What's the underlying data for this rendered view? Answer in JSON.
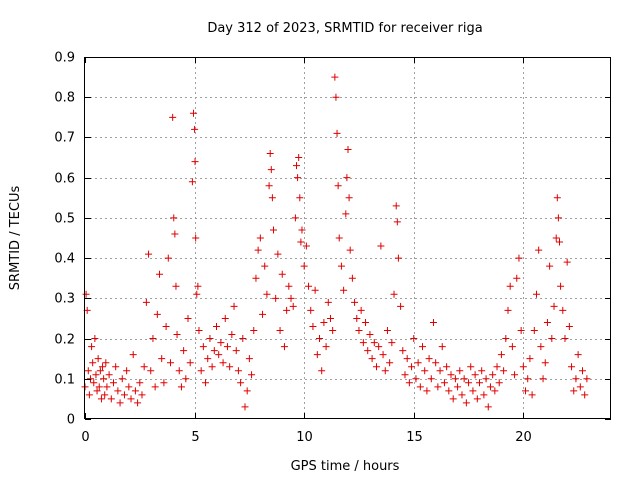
{
  "chart_data": {
    "type": "scatter",
    "title": "Day 312 of 2023, SRMTID for receiver riga",
    "xlabel": "GPS time / hours",
    "ylabel": "SRMTID / TECUs",
    "xlim": [
      0,
      24
    ],
    "ylim": [
      0,
      0.9
    ],
    "xticks": [
      0,
      5,
      10,
      15,
      20
    ],
    "xtick_labels": [
      "0",
      "5",
      "10",
      "15",
      "20"
    ],
    "yticks": [
      0,
      0.1,
      0.2,
      0.3,
      0.4,
      0.5,
      0.6,
      0.7,
      0.8,
      0.9
    ],
    "ytick_labels": [
      "0",
      "0.1",
      "0.2",
      "0.3",
      "0.4",
      "0.5",
      "0.6",
      "0.7",
      "0.8",
      "0.9"
    ],
    "grid": true,
    "marker": "+",
    "color": "#e00000",
    "series": [
      {
        "name": "SRMTID",
        "points": [
          [
            0.0,
            0.08
          ],
          [
            0.05,
            0.31
          ],
          [
            0.1,
            0.27
          ],
          [
            0.15,
            0.12
          ],
          [
            0.2,
            0.06
          ],
          [
            0.25,
            0.1
          ],
          [
            0.3,
            0.18
          ],
          [
            0.35,
            0.14
          ],
          [
            0.4,
            0.09
          ],
          [
            0.45,
            0.2
          ],
          [
            0.5,
            0.11
          ],
          [
            0.55,
            0.07
          ],
          [
            0.6,
            0.15
          ],
          [
            0.65,
            0.08
          ],
          [
            0.7,
            0.12
          ],
          [
            0.75,
            0.05
          ],
          [
            0.8,
            0.13
          ],
          [
            0.85,
            0.1
          ],
          [
            0.9,
            0.06
          ],
          [
            0.95,
            0.14
          ],
          [
            1.0,
            0.08
          ],
          [
            1.1,
            0.11
          ],
          [
            1.2,
            0.05
          ],
          [
            1.3,
            0.09
          ],
          [
            1.4,
            0.13
          ],
          [
            1.5,
            0.07
          ],
          [
            1.6,
            0.04
          ],
          [
            1.7,
            0.1
          ],
          [
            1.8,
            0.06
          ],
          [
            1.9,
            0.12
          ],
          [
            2.0,
            0.08
          ],
          [
            2.1,
            0.05
          ],
          [
            2.2,
            0.16
          ],
          [
            2.3,
            0.07
          ],
          [
            2.4,
            0.04
          ],
          [
            2.5,
            0.09
          ],
          [
            2.6,
            0.06
          ],
          [
            2.7,
            0.13
          ],
          [
            2.8,
            0.29
          ],
          [
            2.9,
            0.41
          ],
          [
            3.0,
            0.12
          ],
          [
            3.1,
            0.2
          ],
          [
            3.2,
            0.08
          ],
          [
            3.3,
            0.26
          ],
          [
            3.4,
            0.36
          ],
          [
            3.5,
            0.15
          ],
          [
            3.6,
            0.09
          ],
          [
            3.7,
            0.23
          ],
          [
            3.8,
            0.4
          ],
          [
            3.9,
            0.14
          ],
          [
            4.0,
            0.75
          ],
          [
            4.05,
            0.5
          ],
          [
            4.1,
            0.46
          ],
          [
            4.15,
            0.33
          ],
          [
            4.2,
            0.21
          ],
          [
            4.3,
            0.12
          ],
          [
            4.4,
            0.08
          ],
          [
            4.5,
            0.17
          ],
          [
            4.6,
            0.1
          ],
          [
            4.7,
            0.25
          ],
          [
            4.8,
            0.14
          ],
          [
            4.9,
            0.59
          ],
          [
            4.95,
            0.76
          ],
          [
            5.0,
            0.72
          ],
          [
            5.02,
            0.64
          ],
          [
            5.05,
            0.45
          ],
          [
            5.1,
            0.31
          ],
          [
            5.15,
            0.33
          ],
          [
            5.2,
            0.22
          ],
          [
            5.3,
            0.12
          ],
          [
            5.4,
            0.18
          ],
          [
            5.5,
            0.09
          ],
          [
            5.6,
            0.15
          ],
          [
            5.7,
            0.2
          ],
          [
            5.8,
            0.13
          ],
          [
            5.9,
            0.17
          ],
          [
            6.0,
            0.23
          ],
          [
            6.1,
            0.16
          ],
          [
            6.2,
            0.19
          ],
          [
            6.3,
            0.14
          ],
          [
            6.4,
            0.25
          ],
          [
            6.5,
            0.18
          ],
          [
            6.6,
            0.13
          ],
          [
            6.7,
            0.21
          ],
          [
            6.8,
            0.28
          ],
          [
            6.9,
            0.17
          ],
          [
            7.0,
            0.12
          ],
          [
            7.1,
            0.09
          ],
          [
            7.2,
            0.2
          ],
          [
            7.3,
            0.03
          ],
          [
            7.4,
            0.07
          ],
          [
            7.5,
            0.15
          ],
          [
            7.6,
            0.11
          ],
          [
            7.7,
            0.22
          ],
          [
            7.8,
            0.35
          ],
          [
            7.9,
            0.42
          ],
          [
            8.0,
            0.45
          ],
          [
            8.1,
            0.26
          ],
          [
            8.2,
            0.38
          ],
          [
            8.3,
            0.31
          ],
          [
            8.4,
            0.58
          ],
          [
            8.45,
            0.66
          ],
          [
            8.5,
            0.62
          ],
          [
            8.55,
            0.55
          ],
          [
            8.6,
            0.47
          ],
          [
            8.7,
            0.3
          ],
          [
            8.8,
            0.41
          ],
          [
            8.9,
            0.22
          ],
          [
            9.0,
            0.36
          ],
          [
            9.1,
            0.18
          ],
          [
            9.2,
            0.27
          ],
          [
            9.3,
            0.33
          ],
          [
            9.4,
            0.3
          ],
          [
            9.5,
            0.28
          ],
          [
            9.6,
            0.5
          ],
          [
            9.65,
            0.63
          ],
          [
            9.7,
            0.6
          ],
          [
            9.75,
            0.65
          ],
          [
            9.8,
            0.55
          ],
          [
            9.85,
            0.44
          ],
          [
            9.9,
            0.47
          ],
          [
            10.0,
            0.38
          ],
          [
            10.1,
            0.43
          ],
          [
            10.2,
            0.33
          ],
          [
            10.3,
            0.27
          ],
          [
            10.4,
            0.23
          ],
          [
            10.5,
            0.32
          ],
          [
            10.6,
            0.16
          ],
          [
            10.7,
            0.2
          ],
          [
            10.8,
            0.12
          ],
          [
            10.9,
            0.24
          ],
          [
            11.0,
            0.18
          ],
          [
            11.1,
            0.29
          ],
          [
            11.2,
            0.25
          ],
          [
            11.3,
            0.22
          ],
          [
            11.4,
            0.85
          ],
          [
            11.45,
            0.8
          ],
          [
            11.5,
            0.71
          ],
          [
            11.55,
            0.58
          ],
          [
            11.6,
            0.45
          ],
          [
            11.7,
            0.38
          ],
          [
            11.8,
            0.32
          ],
          [
            11.9,
            0.51
          ],
          [
            11.95,
            0.6
          ],
          [
            12.0,
            0.67
          ],
          [
            12.05,
            0.55
          ],
          [
            12.1,
            0.42
          ],
          [
            12.2,
            0.35
          ],
          [
            12.3,
            0.29
          ],
          [
            12.4,
            0.25
          ],
          [
            12.5,
            0.22
          ],
          [
            12.6,
            0.27
          ],
          [
            12.7,
            0.19
          ],
          [
            12.8,
            0.24
          ],
          [
            12.9,
            0.17
          ],
          [
            13.0,
            0.21
          ],
          [
            13.1,
            0.15
          ],
          [
            13.2,
            0.19
          ],
          [
            13.3,
            0.13
          ],
          [
            13.4,
            0.18
          ],
          [
            13.5,
            0.43
          ],
          [
            13.6,
            0.16
          ],
          [
            13.7,
            0.12
          ],
          [
            13.8,
            0.22
          ],
          [
            13.9,
            0.14
          ],
          [
            14.0,
            0.19
          ],
          [
            14.1,
            0.31
          ],
          [
            14.2,
            0.53
          ],
          [
            14.25,
            0.49
          ],
          [
            14.3,
            0.4
          ],
          [
            14.4,
            0.28
          ],
          [
            14.5,
            0.17
          ],
          [
            14.6,
            0.11
          ],
          [
            14.7,
            0.15
          ],
          [
            14.8,
            0.09
          ],
          [
            14.9,
            0.13
          ],
          [
            15.0,
            0.2
          ],
          [
            15.1,
            0.1
          ],
          [
            15.2,
            0.14
          ],
          [
            15.3,
            0.08
          ],
          [
            15.4,
            0.18
          ],
          [
            15.5,
            0.12
          ],
          [
            15.6,
            0.07
          ],
          [
            15.7,
            0.15
          ],
          [
            15.8,
            0.1
          ],
          [
            15.9,
            0.24
          ],
          [
            16.0,
            0.14
          ],
          [
            16.1,
            0.08
          ],
          [
            16.2,
            0.12
          ],
          [
            16.3,
            0.18
          ],
          [
            16.4,
            0.09
          ],
          [
            16.5,
            0.13
          ],
          [
            16.6,
            0.07
          ],
          [
            16.7,
            0.11
          ],
          [
            16.8,
            0.05
          ],
          [
            16.9,
            0.1
          ],
          [
            17.0,
            0.08
          ],
          [
            17.1,
            0.12
          ],
          [
            17.2,
            0.06
          ],
          [
            17.3,
            0.1
          ],
          [
            17.4,
            0.04
          ],
          [
            17.5,
            0.09
          ],
          [
            17.6,
            0.13
          ],
          [
            17.7,
            0.07
          ],
          [
            17.8,
            0.11
          ],
          [
            17.9,
            0.05
          ],
          [
            18.0,
            0.09
          ],
          [
            18.1,
            0.12
          ],
          [
            18.2,
            0.06
          ],
          [
            18.3,
            0.1
          ],
          [
            18.4,
            0.03
          ],
          [
            18.5,
            0.08
          ],
          [
            18.6,
            0.11
          ],
          [
            18.7,
            0.07
          ],
          [
            18.8,
            0.13
          ],
          [
            18.9,
            0.09
          ],
          [
            19.0,
            0.16
          ],
          [
            19.1,
            0.12
          ],
          [
            19.2,
            0.2
          ],
          [
            19.3,
            0.27
          ],
          [
            19.4,
            0.33
          ],
          [
            19.5,
            0.18
          ],
          [
            19.6,
            0.11
          ],
          [
            19.7,
            0.35
          ],
          [
            19.8,
            0.4
          ],
          [
            19.9,
            0.22
          ],
          [
            20.0,
            0.13
          ],
          [
            20.1,
            0.07
          ],
          [
            20.2,
            0.1
          ],
          [
            20.3,
            0.15
          ],
          [
            20.4,
            0.06
          ],
          [
            20.5,
            0.22
          ],
          [
            20.6,
            0.31
          ],
          [
            20.7,
            0.42
          ],
          [
            20.8,
            0.18
          ],
          [
            20.9,
            0.1
          ],
          [
            21.0,
            0.14
          ],
          [
            21.1,
            0.24
          ],
          [
            21.2,
            0.38
          ],
          [
            21.3,
            0.2
          ],
          [
            21.4,
            0.28
          ],
          [
            21.5,
            0.45
          ],
          [
            21.55,
            0.55
          ],
          [
            21.6,
            0.5
          ],
          [
            21.65,
            0.44
          ],
          [
            21.7,
            0.33
          ],
          [
            21.8,
            0.27
          ],
          [
            21.9,
            0.2
          ],
          [
            22.0,
            0.39
          ],
          [
            22.1,
            0.23
          ],
          [
            22.2,
            0.13
          ],
          [
            22.3,
            0.07
          ],
          [
            22.4,
            0.1
          ],
          [
            22.5,
            0.16
          ],
          [
            22.6,
            0.08
          ],
          [
            22.7,
            0.12
          ],
          [
            22.8,
            0.06
          ],
          [
            22.9,
            0.1
          ]
        ]
      }
    ]
  }
}
